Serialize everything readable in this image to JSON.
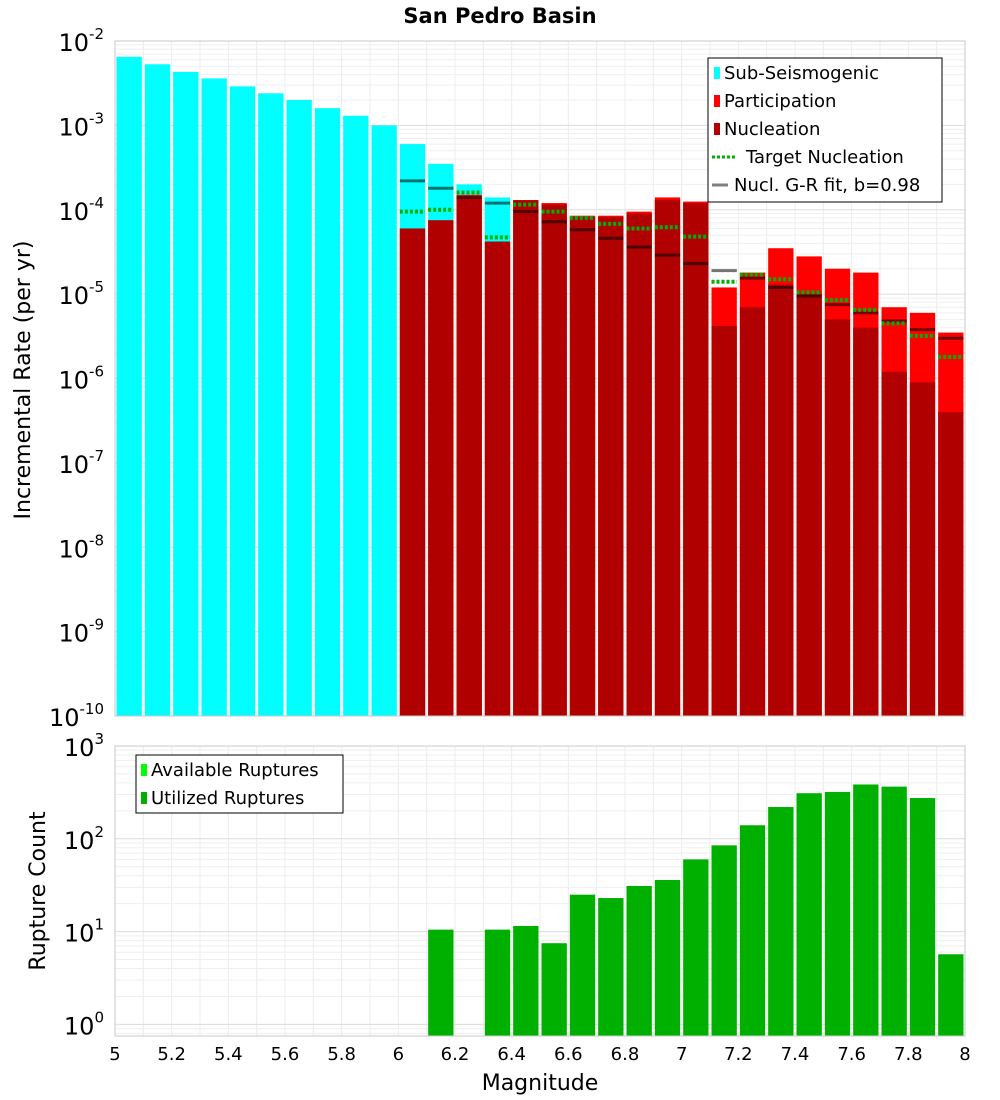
{
  "chart_data": [
    {
      "type": "bar",
      "title": "San Pedro Basin",
      "xlabel": "",
      "ylabel": "Incremental Rate (per yr)",
      "yscale": "log",
      "ylim": [
        1e-10,
        0.01
      ],
      "xlim": [
        5,
        8
      ],
      "y_ticks": [
        {
          "base": "10",
          "exp": "-10"
        },
        {
          "base": "10",
          "exp": "-9"
        },
        {
          "base": "10",
          "exp": "-8"
        },
        {
          "base": "10",
          "exp": "-7"
        },
        {
          "base": "10",
          "exp": "-6"
        },
        {
          "base": "10",
          "exp": "-5"
        },
        {
          "base": "10",
          "exp": "-4"
        },
        {
          "base": "10",
          "exp": "-3"
        },
        {
          "base": "10",
          "exp": "-2"
        }
      ],
      "legend_position": "top-right",
      "legend": [
        {
          "label": "Sub-Seismogenic",
          "color": "#00ffff",
          "kind": "bar"
        },
        {
          "label": "Participation",
          "color": "#ff0000",
          "kind": "bar"
        },
        {
          "label": "Nucleation",
          "color": "#b00000",
          "kind": "bar"
        },
        {
          "label": "Target Nucleation",
          "color": "#00b000",
          "kind": "dotted"
        },
        {
          "label": "Nucl. G-R fit, b=0.98",
          "color": "#808080",
          "kind": "line"
        }
      ],
      "bin_width": 0.1,
      "series": [
        {
          "name": "Sub-Seismogenic",
          "color": "#00ffff",
          "x": [
            5.05,
            5.15,
            5.25,
            5.35,
            5.45,
            5.55,
            5.65,
            5.75,
            5.85,
            5.95,
            6.05,
            6.15,
            6.25,
            6.35
          ],
          "values": [
            0.0065,
            0.0053,
            0.0043,
            0.0036,
            0.0029,
            0.0024,
            0.002,
            0.0016,
            0.0013,
            0.001,
            0.0006,
            0.00035,
            0.0002,
            0.00014
          ]
        },
        {
          "name": "Participation",
          "color": "#ff0000",
          "x": [
            6.05,
            6.15,
            6.25,
            6.35,
            6.45,
            6.55,
            6.65,
            6.75,
            6.85,
            6.95,
            7.05,
            7.15,
            7.25,
            7.35,
            7.45,
            7.55,
            7.65,
            7.75,
            7.85,
            7.95
          ],
          "values": [
            6e-05,
            7.5e-05,
            0.00015,
            4.2e-05,
            0.00013,
            0.00012,
            8.5e-05,
            8.5e-05,
            9.5e-05,
            0.00014,
            0.000125,
            1.2e-05,
            1.8e-05,
            3.5e-05,
            2.8e-05,
            2e-05,
            1.8e-05,
            7e-06,
            6e-06,
            3.5e-06
          ]
        },
        {
          "name": "Nucleation",
          "color": "#b00000",
          "x": [
            6.05,
            6.15,
            6.25,
            6.35,
            6.45,
            6.55,
            6.65,
            6.75,
            6.85,
            6.95,
            7.05,
            7.15,
            7.25,
            7.35,
            7.45,
            7.55,
            7.65,
            7.75,
            7.85,
            7.95
          ],
          "values": [
            6e-05,
            7.5e-05,
            0.00014,
            4.2e-05,
            0.00013,
            0.000115,
            8.2e-05,
            8.2e-05,
            9e-05,
            0.00013,
            0.00012,
            4.2e-06,
            7e-06,
            1.3e-05,
            1e-05,
            5e-06,
            4e-06,
            1.2e-06,
            9e-07,
            4e-07
          ]
        },
        {
          "name": "Target Nucleation",
          "color": "#00b000",
          "x": [
            6.05,
            6.15,
            6.25,
            6.35,
            6.45,
            6.55,
            6.65,
            6.75,
            6.85,
            6.95,
            7.05,
            7.15,
            7.25,
            7.35,
            7.45,
            7.55,
            7.65,
            7.75,
            7.85,
            7.95
          ],
          "values": [
            9.5e-05,
            0.0001,
            0.00016,
            4.7e-05,
            0.000115,
            9.5e-05,
            8e-05,
            6.8e-05,
            6e-05,
            6.2e-05,
            4.8e-05,
            1.4e-05,
            1.7e-05,
            1.5e-05,
            1.05e-05,
            8.5e-06,
            6.5e-06,
            4.5e-06,
            3.2e-06,
            1.8e-06
          ]
        },
        {
          "name": "Nucl. G-R fit, b=0.98",
          "color": "#808080",
          "x": [
            6.05,
            6.15,
            6.25,
            6.35,
            6.45,
            6.55,
            6.65,
            6.75,
            6.85,
            6.95,
            7.05,
            7.15,
            7.25,
            7.35,
            7.45,
            7.55,
            7.65,
            7.75,
            7.85,
            7.95
          ],
          "values": [
            0.00022,
            0.00018,
            0.00014,
            0.00012,
            9.5e-05,
            7.2e-05,
            5.8e-05,
            4.6e-05,
            3.6e-05,
            2.9e-05,
            2.3e-05,
            1.9e-05,
            1.55e-05,
            1.2e-05,
            9.5e-06,
            7.5e-06,
            6e-06,
            4.8e-06,
            3.8e-06,
            3e-06
          ]
        }
      ]
    },
    {
      "type": "bar",
      "title": "",
      "xlabel": "Magnitude",
      "ylabel": "Rupture Count",
      "yscale": "log",
      "ylim": [
        0.75,
        1000
      ],
      "xlim": [
        5,
        8
      ],
      "x_ticks": [
        "5",
        "5.2",
        "5.4",
        "5.6",
        "5.8",
        "6",
        "6.2",
        "6.4",
        "6.6",
        "6.8",
        "7",
        "7.2",
        "7.4",
        "7.6",
        "7.8",
        "8"
      ],
      "y_ticks": [
        {
          "base": "10",
          "exp": "0"
        },
        {
          "base": "10",
          "exp": "1"
        },
        {
          "base": "10",
          "exp": "2"
        },
        {
          "base": "10",
          "exp": "3"
        }
      ],
      "legend_position": "top-left",
      "legend": [
        {
          "label": "Available Ruptures",
          "color": "#00ff00",
          "kind": "bar"
        },
        {
          "label": "Utilized Ruptures",
          "color": "#00b000",
          "kind": "bar"
        }
      ],
      "bin_width": 0.1,
      "series": [
        {
          "name": "Utilized Ruptures",
          "color": "#00b000",
          "x": [
            6.15,
            6.35,
            6.45,
            6.55,
            6.65,
            6.75,
            6.85,
            6.95,
            7.05,
            7.15,
            7.25,
            7.35,
            7.45,
            7.55,
            7.65,
            7.75,
            7.85,
            7.95
          ],
          "values": [
            10.5,
            10.5,
            11.5,
            7.5,
            25,
            23,
            31,
            36,
            60,
            85,
            140,
            220,
            310,
            320,
            385,
            365,
            275,
            5.7
          ]
        }
      ]
    }
  ]
}
